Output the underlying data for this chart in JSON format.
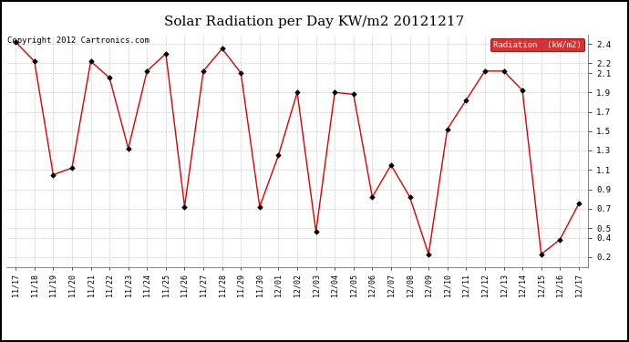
{
  "title": "Solar Radiation per Day KW/m2 20121217",
  "copyright_text": "Copyright 2012 Cartronics.com",
  "legend_label": "Radiation  (kW/m2)",
  "dates": [
    "11/17",
    "11/18",
    "11/19",
    "11/20",
    "11/21",
    "11/22",
    "11/23",
    "11/24",
    "11/25",
    "11/26",
    "11/27",
    "11/28",
    "11/29",
    "11/30",
    "12/01",
    "12/02",
    "12/03",
    "12/04",
    "12/05",
    "12/06",
    "12/07",
    "12/08",
    "12/09",
    "12/10",
    "12/11",
    "12/12",
    "12/13",
    "12/14",
    "12/15",
    "12/16",
    "12/17"
  ],
  "values": [
    2.42,
    2.22,
    1.05,
    1.12,
    2.22,
    2.05,
    1.32,
    2.12,
    2.3,
    0.72,
    2.12,
    2.35,
    2.1,
    0.72,
    1.25,
    1.9,
    0.46,
    1.9,
    1.88,
    0.82,
    1.15,
    0.82,
    0.23,
    1.52,
    1.82,
    2.12,
    2.12,
    1.92,
    0.23,
    0.38,
    0.75
  ],
  "line_color": "#dd0000",
  "marker_color": "black",
  "legend_bg": "#cc0000",
  "legend_text_color": "white",
  "background_color": "#ffffff",
  "border_color": "#000000",
  "grid_color": "#cccccc",
  "title_fontsize": 11,
  "copyright_fontsize": 6.5,
  "tick_fontsize": 6,
  "legend_fontsize": 6.5,
  "yticks": [
    0.2,
    0.4,
    0.5,
    0.7,
    0.9,
    1.1,
    1.3,
    1.5,
    1.7,
    1.9,
    2.1,
    2.2,
    2.4
  ],
  "ylim_min": 0.1,
  "ylim_max": 2.5
}
